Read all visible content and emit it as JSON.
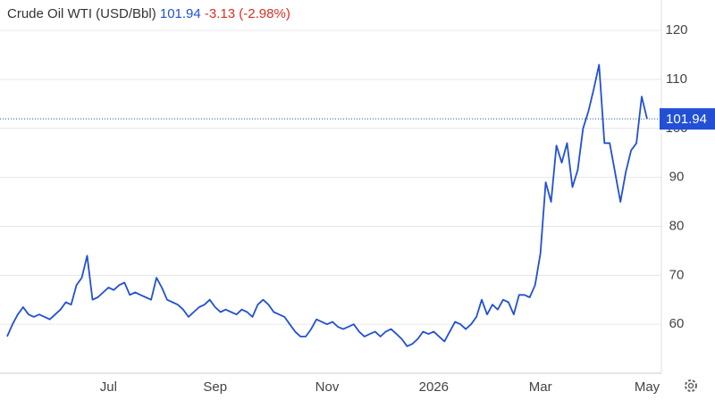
{
  "chart_data": {
    "type": "line",
    "header": {
      "name": "Crude Oil WTI (USD/Bbl)",
      "price": 101.94,
      "change": -3.13,
      "change_percent": "(-2.98%)"
    },
    "categories": [
      null,
      null,
      null,
      null,
      null,
      null,
      null,
      null,
      null,
      null,
      null,
      null,
      null,
      null,
      null,
      null,
      null,
      null,
      null,
      "Jul",
      null,
      null,
      null,
      null,
      null,
      null,
      null,
      null,
      null,
      null,
      null,
      null,
      null,
      null,
      null,
      null,
      null,
      null,
      null,
      "Sep",
      null,
      null,
      null,
      null,
      null,
      null,
      null,
      null,
      null,
      null,
      null,
      null,
      null,
      null,
      null,
      null,
      null,
      null,
      null,
      null,
      "Nov",
      null,
      null,
      null,
      null,
      null,
      null,
      null,
      null,
      null,
      null,
      null,
      null,
      null,
      null,
      null,
      null,
      null,
      null,
      null,
      "2026",
      null,
      null,
      null,
      null,
      null,
      null,
      null,
      null,
      null,
      null,
      null,
      null,
      null,
      null,
      null,
      null,
      null,
      null,
      null,
      "Mar",
      null,
      null,
      null,
      null,
      null,
      null,
      null,
      null,
      null,
      null,
      null,
      null,
      null,
      null,
      null,
      null,
      null,
      null,
      null,
      "May"
    ],
    "series": [
      {
        "name": "Crude Oil WTI",
        "color": "#2150d6",
        "values": [
          57.5,
          60,
          62,
          63.5,
          62,
          61.5,
          62,
          61.5,
          61,
          62,
          63,
          64.5,
          64,
          68,
          69.5,
          74,
          65,
          65.5,
          66.5,
          67.5,
          67,
          68,
          68.5,
          66,
          66.5,
          66,
          65.5,
          65,
          69.5,
          67.5,
          65,
          64.5,
          64,
          63,
          61.5,
          62.5,
          63.5,
          64,
          65,
          63.5,
          62.5,
          63,
          62.5,
          62,
          63,
          62.5,
          61.5,
          64,
          65,
          64,
          62.5,
          62,
          61.5,
          60,
          58.5,
          57.5,
          57.5,
          59,
          61,
          60.5,
          60,
          60.5,
          59.5,
          59,
          59.5,
          60,
          58.5,
          57.5,
          58,
          58.5,
          57.5,
          58.5,
          59,
          58,
          57,
          55.5,
          56,
          57,
          58.5,
          58,
          58.5,
          57.5,
          56.5,
          58.5,
          60.5,
          60,
          59,
          60,
          61.5,
          65,
          62,
          64,
          63,
          65,
          64.5,
          62,
          66,
          66,
          65.5,
          68,
          74.5,
          89,
          85,
          96.5,
          93,
          97,
          88,
          91.5,
          100,
          103.5,
          108,
          113,
          97,
          97,
          91,
          85,
          91,
          95.5,
          97,
          106.5,
          101.94
        ]
      }
    ],
    "ylim": [
      50,
      124.4
    ],
    "yticks": [
      60,
      70,
      80,
      90,
      100,
      110,
      120
    ],
    "grid": true
  }
}
